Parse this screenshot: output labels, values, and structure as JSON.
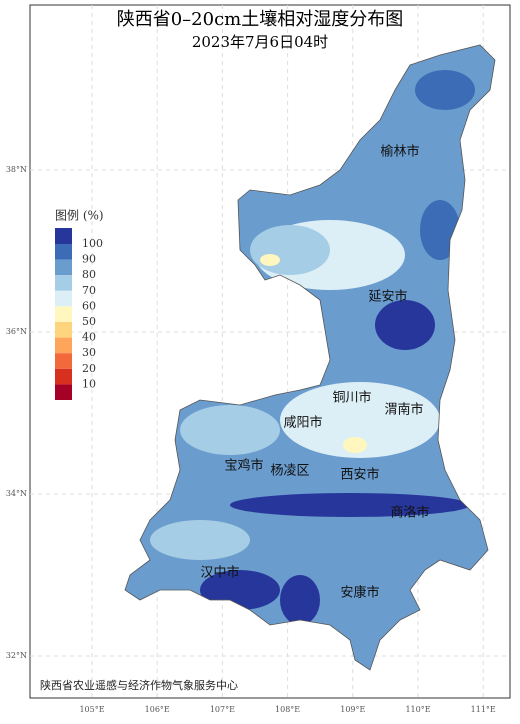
{
  "map": {
    "title": "陕西省0–20cm土壤相对湿度分布图",
    "subtitle": "2023年7月6日04时",
    "legend": {
      "title": "图例 (%)",
      "labels": [
        "100",
        "90",
        "80",
        "70",
        "60",
        "50",
        "40",
        "30",
        "20",
        "10"
      ],
      "colors": [
        "#26369a",
        "#3b6cb5",
        "#6a9ccd",
        "#a6cde6",
        "#ddeff6",
        "#fff7bd",
        "#fed47e",
        "#fca55b",
        "#f26a3c",
        "#d7301f",
        "#a50026"
      ]
    },
    "cities": [
      "榆林市",
      "延安市",
      "铜川市",
      "渭南市",
      "咸阳市",
      "宝鸡市",
      "杨凌区",
      "西安市",
      "商洛市",
      "汉中市",
      "安康市"
    ],
    "x_axis_labels": [
      "105°E",
      "106°E",
      "107°E",
      "108°E",
      "109°E",
      "110°E",
      "111°E"
    ],
    "y_axis_labels": [
      "38°N",
      "36°N",
      "34°N",
      "32°N"
    ],
    "footer": "陕西省农业遥感与经济作物气象服务中心"
  }
}
